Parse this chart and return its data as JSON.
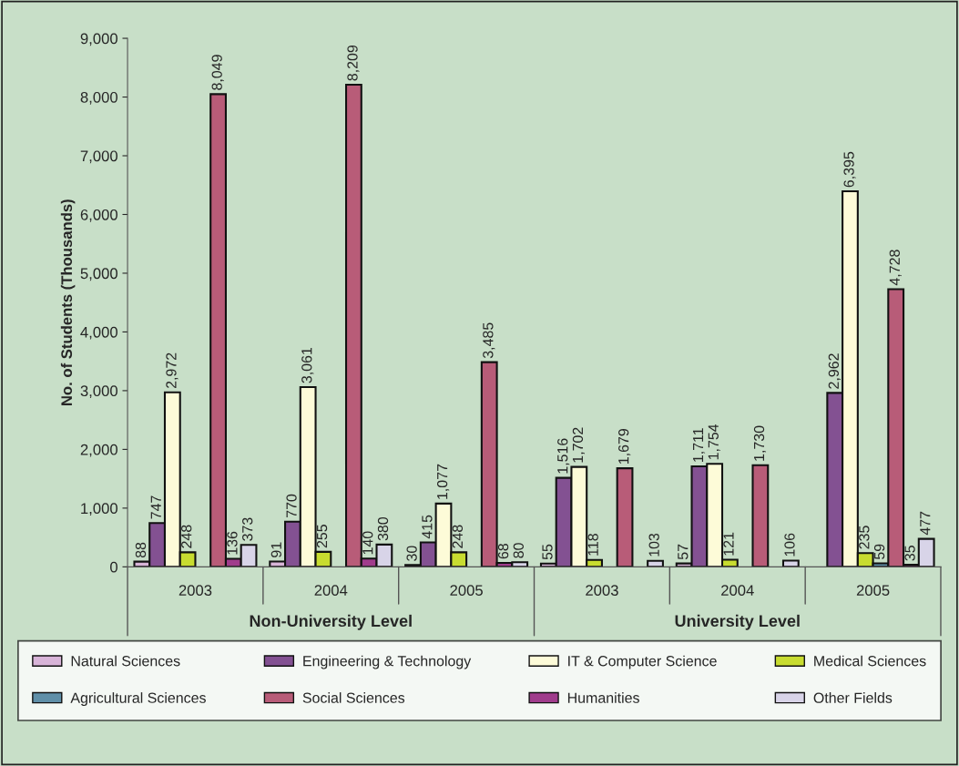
{
  "chart_data": {
    "type": "bar",
    "ylabel": "No. of Students (Thousands)",
    "categories": [
      "2003",
      "2004",
      "2005",
      "2003",
      "2004",
      "2005"
    ],
    "annotations": [
      "Non-University Level",
      "University Level"
    ],
    "series": [
      {
        "name": "Natural Sciences",
        "color": "#d8b4d8",
        "values": [
          88,
          91,
          30,
          55,
          57,
          null
        ],
        "value_labels": [
          "88",
          "91",
          "30",
          "55",
          "57",
          null
        ]
      },
      {
        "name": "Engineering & Technology",
        "color": "#835192",
        "values": [
          747,
          770,
          415,
          1516,
          1711,
          2962
        ],
        "value_labels": [
          "747",
          "770",
          "415",
          "1,516",
          "1,711",
          "2,962"
        ]
      },
      {
        "name": "IT & Computer Science",
        "color": "#fdfbd8",
        "values": [
          2972,
          3061,
          1077,
          1702,
          1754,
          6395
        ],
        "value_labels": [
          "2,972",
          "3,061",
          "1,077",
          "1,702",
          "1,754",
          "6,395"
        ]
      },
      {
        "name": "Medical Sciences",
        "color": "#c8dc30",
        "values": [
          248,
          255,
          248,
          118,
          121,
          235
        ],
        "value_labels": [
          "248",
          "255",
          "248",
          "118",
          "121",
          "235"
        ]
      },
      {
        "name": "Agricultural Sciences",
        "color": "#5f8fa8",
        "values": [
          null,
          null,
          null,
          null,
          null,
          59
        ],
        "value_labels": [
          null,
          null,
          null,
          null,
          null,
          "59"
        ]
      },
      {
        "name": "Social Sciences",
        "color": "#b85c78",
        "values": [
          8049,
          8209,
          3485,
          1679,
          1730,
          4728
        ],
        "value_labels": [
          "8,049",
          "8,209",
          "3,485",
          "1,679",
          "1,730",
          "4,728"
        ]
      },
      {
        "name": "Humanities",
        "color": "#a03c8c",
        "values": [
          136,
          140,
          68,
          null,
          null,
          35
        ],
        "value_labels": [
          "136",
          "140",
          "68",
          null,
          null,
          "35"
        ]
      },
      {
        "name": "Other Fields",
        "color": "#d8d4e8",
        "values": [
          373,
          380,
          80,
          103,
          106,
          477
        ],
        "value_labels": [
          "373",
          "380",
          "80",
          "103",
          "106",
          "477"
        ]
      }
    ],
    "ylim": [
      0,
      9000
    ],
    "yticks": [
      {
        "value": 0,
        "label": "0"
      },
      {
        "value": 1000,
        "label": "1,000"
      },
      {
        "value": 2000,
        "label": "2,000"
      },
      {
        "value": 3000,
        "label": "3,000"
      },
      {
        "value": 4000,
        "label": "4,000"
      },
      {
        "value": 5000,
        "label": "5,000"
      },
      {
        "value": 6000,
        "label": "6,000"
      },
      {
        "value": 7000,
        "label": "7,000"
      },
      {
        "value": 8000,
        "label": "8,000"
      },
      {
        "value": 9000,
        "label": "9,000"
      }
    ],
    "grid": false,
    "legend": "bottom"
  }
}
